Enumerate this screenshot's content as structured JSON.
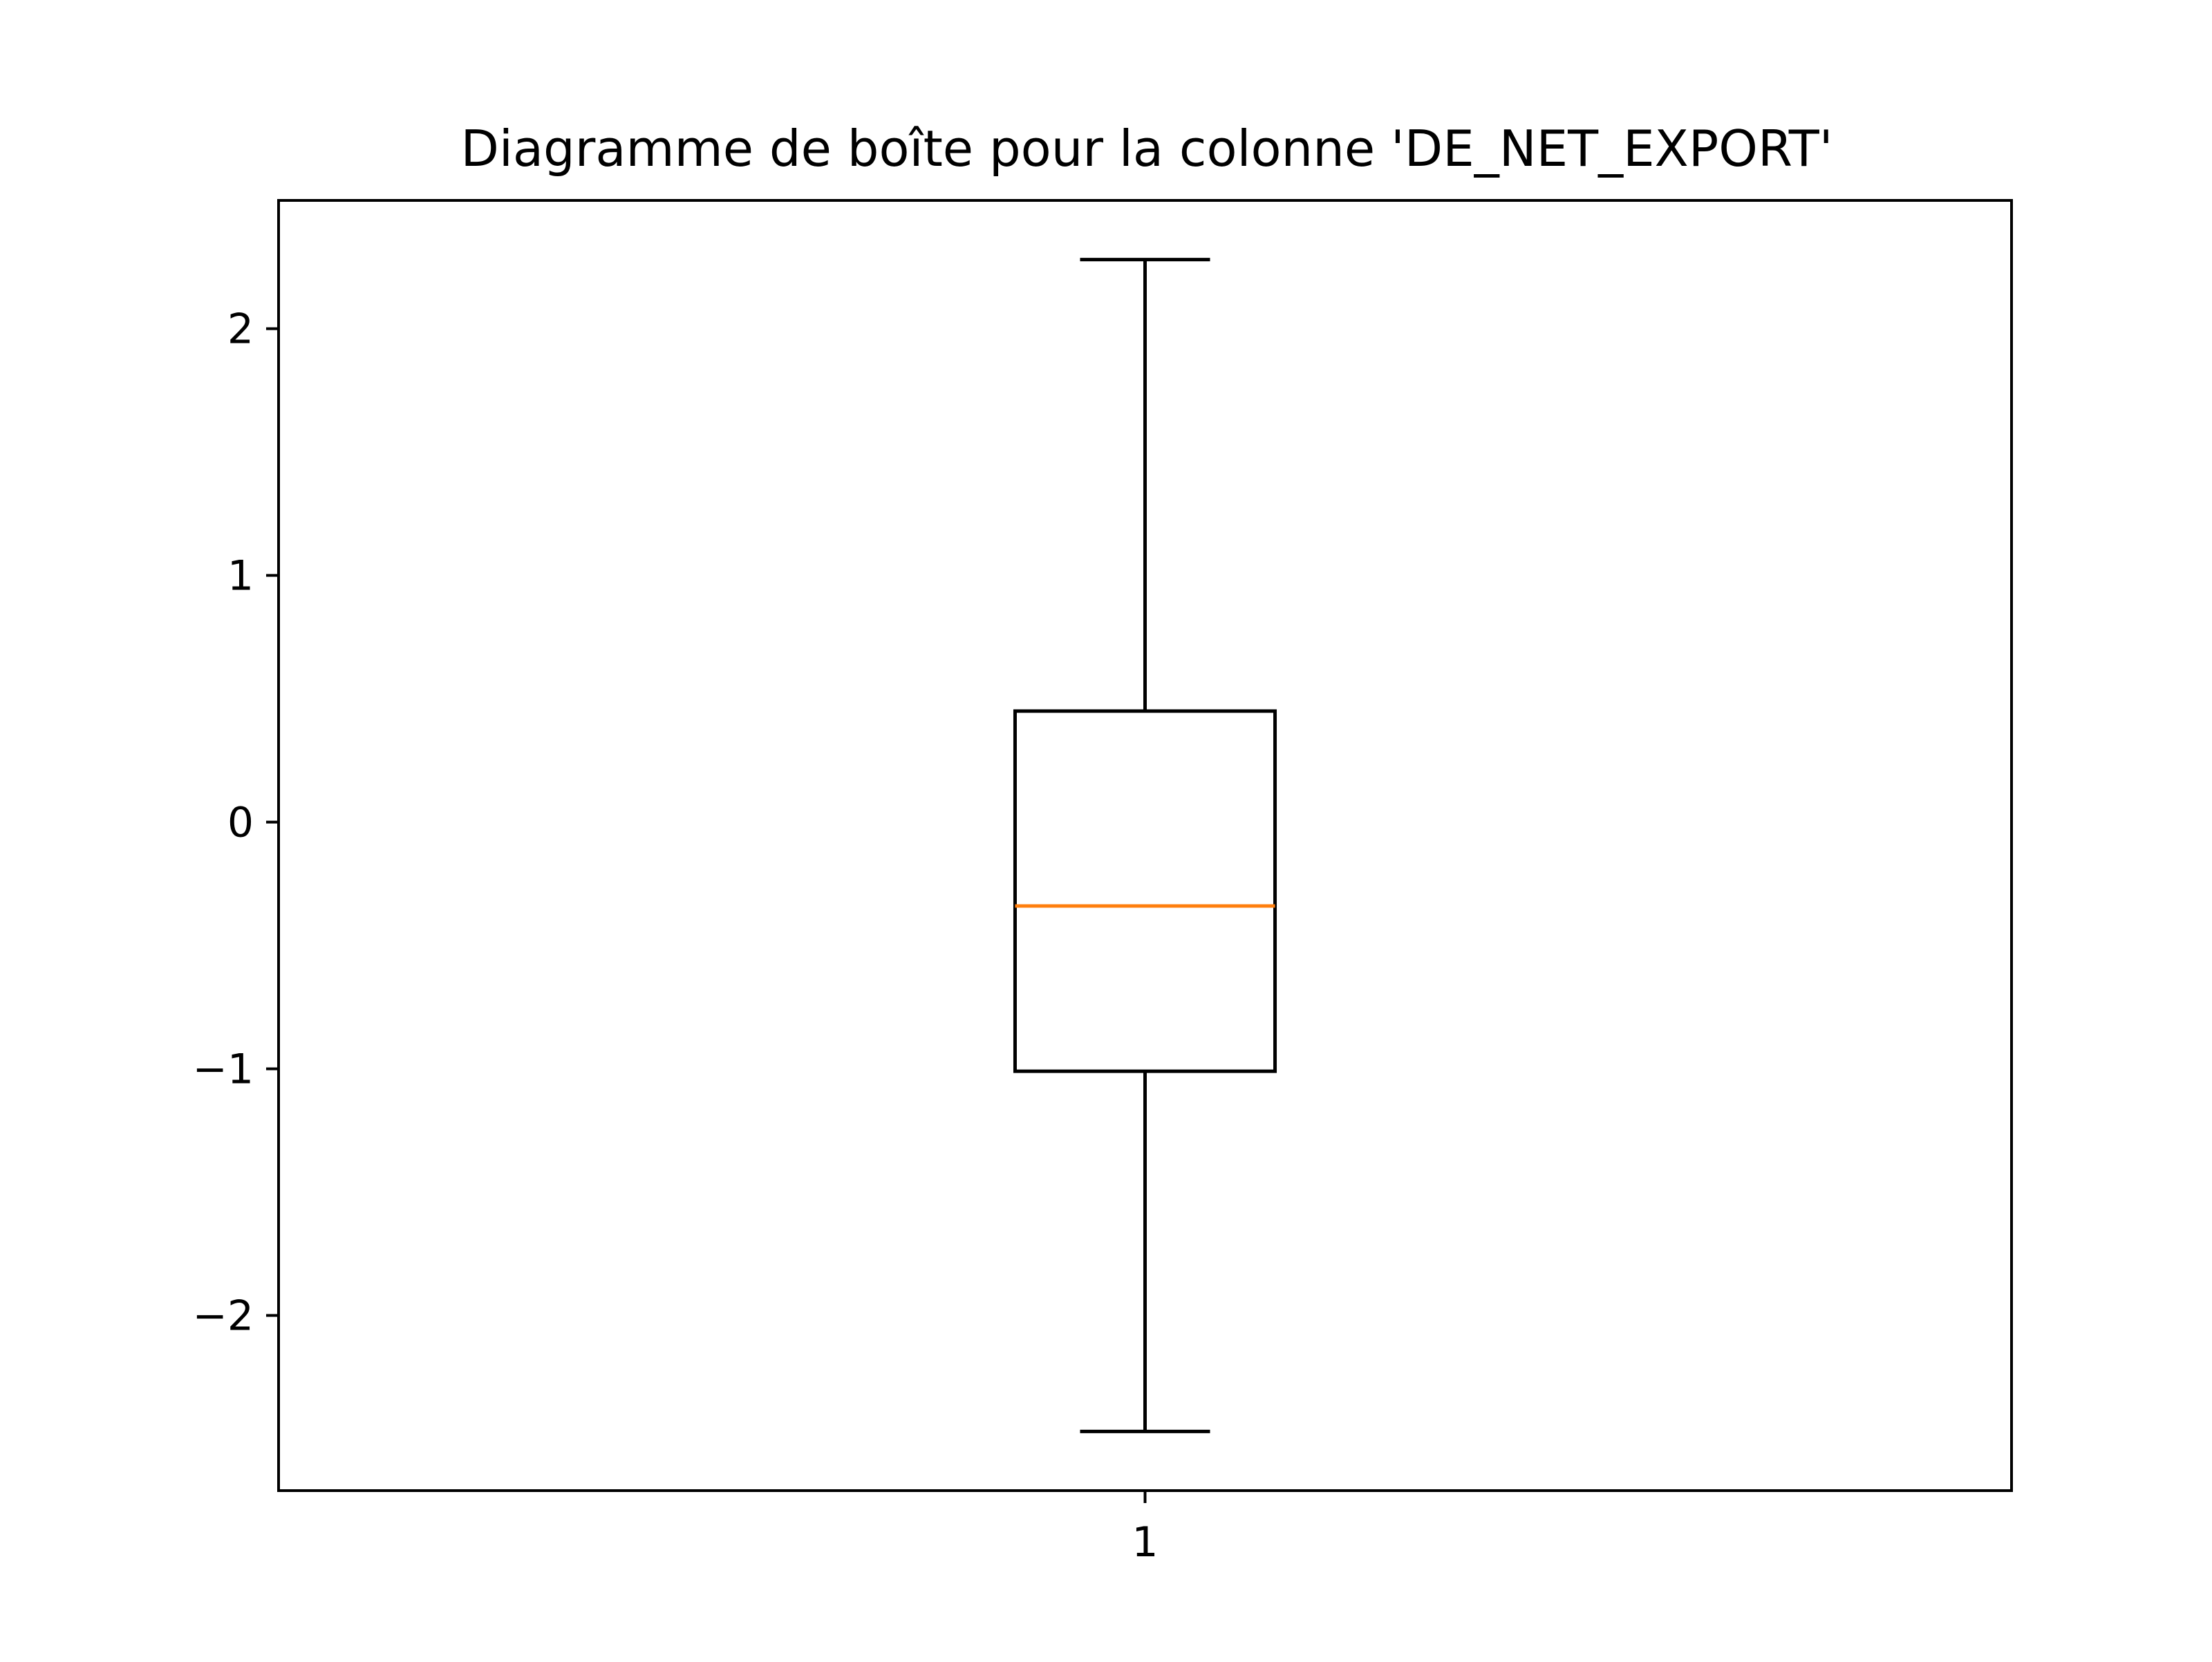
{
  "chart_data": {
    "type": "box",
    "title": "Diagramme de boîte pour la colonne 'DE_NET_EXPORT'",
    "xlabel": "",
    "ylabel": "",
    "categories": [
      "1"
    ],
    "boxes": [
      {
        "category": "1",
        "whisker_low": -2.47,
        "q1": -1.01,
        "median": -0.34,
        "q3": 0.45,
        "whisker_high": 2.28
      }
    ],
    "ylim": [
      -2.71,
      2.52
    ],
    "yticks": [
      {
        "value": -2,
        "label": "−2"
      },
      {
        "value": -1,
        "label": "−1"
      },
      {
        "value": 0,
        "label": "0"
      },
      {
        "value": 1,
        "label": "1"
      },
      {
        "value": 2,
        "label": "2"
      }
    ],
    "xticks": [
      {
        "value": 1,
        "label": "1"
      }
    ],
    "xlim": [
      0.5,
      1.5
    ],
    "grid": false,
    "colors": {
      "box": "#000000",
      "median": "#ff7f0e",
      "axes": "#000000"
    }
  }
}
